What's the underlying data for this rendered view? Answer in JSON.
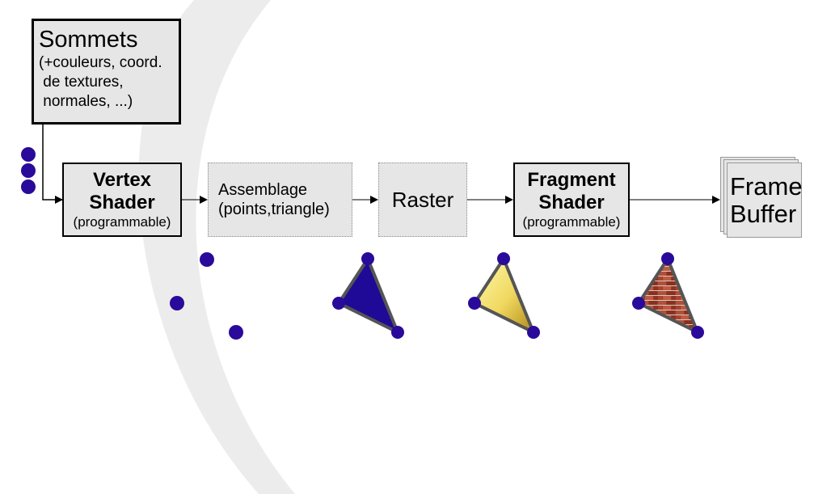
{
  "sommets": {
    "title": "Sommets",
    "lines": [
      "(+couleurs, coord.",
      " de textures,",
      " normales, ...)"
    ]
  },
  "vertex_shader": {
    "title_line1": "Vertex",
    "title_line2": "Shader",
    "subtitle": "(programmable)"
  },
  "assemblage": {
    "line1": "Assemblage",
    "line2": "(points,triangle)"
  },
  "raster": {
    "label": "Raster"
  },
  "fragment_shader": {
    "title_line1": "Fragment",
    "title_line2": "Shader",
    "subtitle": "(programmable)"
  },
  "frame_buffer": {
    "line1": "Frame",
    "line2": "Buffer"
  },
  "colors": {
    "vertex_dot": "#2a0a9a",
    "triangle_flat": "#1e0a96",
    "triangle_gradient_start": "#fff9a0",
    "triangle_gradient_end": "#c8a020",
    "triangle_texture": "#9a3a2a",
    "box_fill": "#e6e6e6",
    "arrow": "#000000",
    "background_swoosh": "#ececec"
  }
}
